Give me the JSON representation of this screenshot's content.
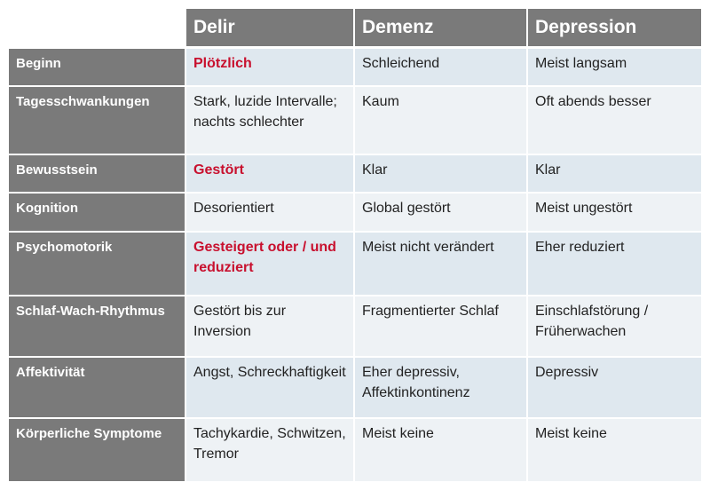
{
  "header": [
    "Delir",
    "Demenz",
    "Depression"
  ],
  "rows": [
    {
      "label": "Beginn",
      "delir": "Plötzlich",
      "demenz": "Schleichend",
      "depression": "Meist langsam",
      "delir_highlight": true
    },
    {
      "label": "Tagesschwankungen",
      "delir": "Stark, luzide Intervalle; nachts schlechter",
      "demenz": "Kaum",
      "depression": "Oft abends besser",
      "delir_highlight": false
    },
    {
      "label": "Bewusstsein",
      "delir": "Gestört",
      "demenz": "Klar",
      "depression": "Klar",
      "delir_highlight": true
    },
    {
      "label": "Kognition",
      "delir": "Desorientiert",
      "demenz": "Global gestört",
      "depression": "Meist ungestört",
      "delir_highlight": false
    },
    {
      "label": "Psychomotorik",
      "delir": "Gesteigert oder / und reduziert",
      "demenz": "Meist nicht verändert",
      "depression": "Eher reduziert",
      "delir_highlight": true
    },
    {
      "label": "Schlaf-Wach-Rhythmus",
      "delir": "Gestört bis zur Inversion",
      "demenz": "Fragmentierter Schlaf",
      "depression": "Einschlafstörung / Früherwachen",
      "delir_highlight": false
    },
    {
      "label": "Affektivität",
      "delir": "Angst, Schreckhaftigkeit",
      "demenz": "Eher depressiv, Affektinkontinenz",
      "depression": "Depressiv",
      "delir_highlight": false
    },
    {
      "label": "Körperliche Symptome",
      "delir": "Tachykardie, Schwitzen, Tremor",
      "demenz": "Meist keine",
      "depression": "Meist keine",
      "delir_highlight": false
    }
  ],
  "colors": {
    "header_bg": "#7a7a7a",
    "row_odd_bg": "#dfe8ef",
    "row_even_bg": "#eef2f5",
    "highlight_text": "#c8102e"
  }
}
